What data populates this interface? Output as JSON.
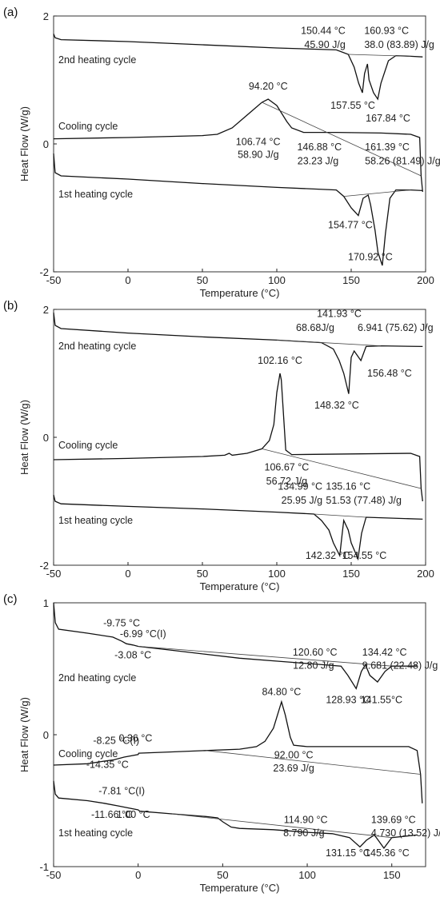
{
  "chart_data": [
    {
      "type": "line",
      "panel_label": "(a)",
      "xlabel": "Temperature (°C)",
      "ylabel": "Heat Flow (W/g)",
      "xlim": [
        -50,
        200
      ],
      "ylim": [
        -2,
        2
      ],
      "xticks": [
        "-50",
        "0",
        "50",
        "100",
        "150",
        "200"
      ],
      "yticks": [
        "2",
        "0",
        "-2"
      ],
      "series": [
        {
          "name": "2nd heating cycle",
          "x": [
            -50,
            -49,
            -45,
            0,
            50,
            100,
            140,
            148,
            152,
            155,
            157.55,
            159,
            160.93,
            162,
            165,
            167.84,
            170,
            175,
            180,
            190,
            198
          ],
          "y": [
            1.72,
            1.66,
            1.63,
            1.6,
            1.55,
            1.5,
            1.47,
            1.4,
            1.2,
            0.95,
            0.8,
            1.1,
            1.25,
            1.0,
            0.8,
            0.7,
            0.95,
            1.3,
            1.38,
            1.37,
            1.36
          ]
        },
        {
          "name": "Cooling cycle",
          "x": [
            -50,
            0,
            50,
            60,
            70,
            80,
            90,
            94.2,
            100,
            106.74,
            110,
            118,
            140,
            170,
            190,
            196,
            197,
            198
          ],
          "y": [
            0.08,
            0.1,
            0.13,
            0.15,
            0.25,
            0.45,
            0.65,
            0.7,
            0.6,
            0.35,
            0.25,
            0.18,
            0.18,
            0.17,
            0.15,
            0.1,
            -0.5,
            -0.75
          ]
        },
        {
          "name": "1st heating cycle",
          "x": [
            -50,
            -49,
            -45,
            0,
            50,
            100,
            140,
            145,
            150,
            154.77,
            158,
            161.39,
            163,
            166,
            168,
            170.92,
            173,
            176,
            180,
            190,
            198
          ],
          "y": [
            -0.15,
            -0.45,
            -0.5,
            -0.55,
            -0.62,
            -0.68,
            -0.72,
            -0.82,
            -1.0,
            -1.12,
            -0.85,
            -0.8,
            -0.95,
            -1.35,
            -1.7,
            -1.9,
            -1.4,
            -0.85,
            -0.72,
            -0.72,
            -0.73
          ]
        }
      ],
      "annotations": [
        {
          "text": "150.44 °C",
          "x": 150.44,
          "y": 1.72
        },
        {
          "text": "160.93 °C",
          "x": 160.93,
          "y": 1.72
        },
        {
          "text": "45.90 J/g",
          "x": 150.44,
          "y": 1.5
        },
        {
          "text": "38.0 (83.89) J/g",
          "x": 160.93,
          "y": 1.5
        },
        {
          "text": "157.55 °C",
          "x": 157.55,
          "y": 0.55
        },
        {
          "text": "167.84 °C",
          "x": 167.84,
          "y": 0.35
        },
        {
          "text": "94.20 °C",
          "x": 94.2,
          "y": 0.85
        },
        {
          "text": "106.74 °C",
          "x": 106.74,
          "y": -0.02
        },
        {
          "text": "58.90 J/g",
          "x": 106.74,
          "y": -0.22
        },
        {
          "text": "146.88 °C",
          "x": 146.88,
          "y": -0.1
        },
        {
          "text": "161.39 °C",
          "x": 161.39,
          "y": -0.1
        },
        {
          "text": "23.23 J/g",
          "x": 146.88,
          "y": -0.32
        },
        {
          "text": "58.26 (81.49) J/g",
          "x": 161.39,
          "y": -0.32
        },
        {
          "text": "154.77 °C",
          "x": 154.77,
          "y": -1.32
        },
        {
          "text": "170.92 °C",
          "x": 170.92,
          "y": -1.82
        }
      ]
    },
    {
      "type": "line",
      "panel_label": "(b)",
      "xlabel": "Temperature (°C)",
      "ylabel": "Heat Flow (W/g)",
      "xlim": [
        -50,
        200
      ],
      "ylim": [
        -2,
        2
      ],
      "xticks": [
        "-50",
        "0",
        "50",
        "100",
        "150",
        "200"
      ],
      "yticks": [
        "2",
        "0",
        "-2"
      ],
      "series": [
        {
          "name": "2nd heating cycle",
          "x": [
            -50,
            -49,
            -45,
            0,
            50,
            100,
            130,
            138,
            141.93,
            145,
            148.32,
            150,
            152,
            156.48,
            160,
            170,
            198
          ],
          "y": [
            1.95,
            1.75,
            1.7,
            1.63,
            1.57,
            1.52,
            1.48,
            1.38,
            1.2,
            1.0,
            0.68,
            1.25,
            1.35,
            1.2,
            1.42,
            1.43,
            1.42
          ]
        },
        {
          "name": "Cooling cycle",
          "x": [
            -50,
            0,
            50,
            65,
            68,
            70,
            80,
            90,
            95,
            98,
            100,
            102.16,
            103,
            106,
            110,
            150,
            190,
            196,
            197,
            198
          ],
          "y": [
            -0.35,
            -0.33,
            -0.3,
            -0.28,
            -0.25,
            -0.28,
            -0.25,
            -0.18,
            -0.05,
            0.2,
            0.7,
            1.0,
            0.9,
            -0.2,
            -0.27,
            -0.26,
            -0.25,
            -0.3,
            -0.8,
            -1.0
          ]
        },
        {
          "name": "1st heating cycle",
          "x": [
            -50,
            -49,
            -45,
            0,
            50,
            100,
            125,
            130,
            134.99,
            138,
            142.32,
            144,
            145,
            148,
            150,
            154.55,
            157,
            160,
            198
          ],
          "y": [
            -0.9,
            -1.0,
            -1.04,
            -1.08,
            -1.12,
            -1.17,
            -1.2,
            -1.3,
            -1.45,
            -1.65,
            -1.85,
            -1.5,
            -1.3,
            -1.45,
            -1.65,
            -1.9,
            -1.5,
            -1.25,
            -1.28
          ]
        }
      ],
      "annotations": [
        {
          "text": "141.93 °C",
          "x": 141.93,
          "y": 1.88
        },
        {
          "text": "68.68J/g",
          "x": 141.93,
          "y": 1.66
        },
        {
          "text": "6.941 (75.62) J/g",
          "x": 156.48,
          "y": 1.66
        },
        {
          "text": "156.48 °C",
          "x": 156.48,
          "y": 0.95
        },
        {
          "text": "148.32 °C",
          "x": 148.32,
          "y": 0.45
        },
        {
          "text": "102.16 °C",
          "x": 102.16,
          "y": 1.15
        },
        {
          "text": "106.67 °C",
          "x": 106.67,
          "y": -0.52
        },
        {
          "text": "56.72 J/g",
          "x": 106.67,
          "y": -0.74
        },
        {
          "text": "134.99 °C",
          "x": 134.99,
          "y": -0.82
        },
        {
          "text": "135.16 °C",
          "x": 135.16,
          "y": -0.82
        },
        {
          "text": "25.95 J/g",
          "x": 134.99,
          "y": -1.04
        },
        {
          "text": "51.53 (77.48) J/g",
          "x": 135.16,
          "y": -1.04
        },
        {
          "text": "142.32 °C",
          "x": 142.32,
          "y": -1.9
        },
        {
          "text": "154.55 °C",
          "x": 154.55,
          "y": -1.9
        }
      ]
    },
    {
      "type": "line",
      "panel_label": "(c)",
      "xlabel": "Temperature (°C)",
      "ylabel": "Heat Flow (W/g)",
      "xlim": [
        -50,
        170
      ],
      "ylim": [
        -1,
        1
      ],
      "xticks": [
        "-50",
        "0",
        "50",
        "100",
        "150"
      ],
      "yticks": [
        "1",
        "0",
        "-1"
      ],
      "series": [
        {
          "name": "2nd heating cycle",
          "x": [
            -50,
            -49,
            -47,
            -30,
            -15,
            -9.75,
            -6.99,
            -3.08,
            0,
            20,
            40,
            60,
            80,
            100,
            120,
            124,
            128.93,
            132,
            134.42,
            137,
            141.55,
            146,
            150,
            165
          ],
          "y": [
            1.0,
            0.85,
            0.8,
            0.77,
            0.74,
            0.71,
            0.69,
            0.68,
            0.67,
            0.64,
            0.61,
            0.58,
            0.56,
            0.54,
            0.52,
            0.45,
            0.35,
            0.48,
            0.53,
            0.45,
            0.4,
            0.48,
            0.52,
            0.52
          ]
        },
        {
          "name": "Cooling cycle",
          "x": [
            -50,
            -30,
            -20,
            -14.35,
            -8.25,
            0,
            0.36,
            20,
            40,
            60,
            70,
            75,
            80,
            84.8,
            87,
            90,
            92,
            100,
            130,
            160,
            165,
            167,
            168
          ],
          "y": [
            -0.23,
            -0.22,
            -0.2,
            -0.19,
            -0.17,
            -0.15,
            -0.14,
            -0.13,
            -0.12,
            -0.11,
            -0.09,
            -0.05,
            0.05,
            0.25,
            0.15,
            -0.02,
            -0.08,
            -0.09,
            -0.09,
            -0.09,
            -0.12,
            -0.3,
            -0.52
          ]
        },
        {
          "name": "1st heating cycle",
          "x": [
            -50,
            -49,
            -47,
            -30,
            -20,
            -11.66,
            -7.81,
            0,
            1.0,
            20,
            40,
            47,
            50,
            55,
            60,
            80,
            100,
            114.9,
            125,
            131.15,
            135,
            139.69,
            142,
            145.36,
            150,
            165
          ],
          "y": [
            -0.35,
            -0.45,
            -0.48,
            -0.5,
            -0.52,
            -0.54,
            -0.55,
            -0.57,
            -0.58,
            -0.6,
            -0.62,
            -0.63,
            -0.66,
            -0.7,
            -0.71,
            -0.72,
            -0.74,
            -0.75,
            -0.78,
            -0.85,
            -0.8,
            -0.76,
            -0.8,
            -0.86,
            -0.78,
            -0.76
          ]
        }
      ],
      "annotations": [
        {
          "text": "-9.75 °C",
          "x": -9.75,
          "y": 0.82
        },
        {
          "text": "-6.99 °C(I)",
          "x": -6.99,
          "y": 0.74
        },
        {
          "text": "-3.08 °C",
          "x": -3.08,
          "y": 0.58
        },
        {
          "text": "120.60 °C",
          "x": 120.6,
          "y": 0.6
        },
        {
          "text": "134.42 °C",
          "x": 134.42,
          "y": 0.6
        },
        {
          "text": "12.80 J/g",
          "x": 120.6,
          "y": 0.5
        },
        {
          "text": "9.681 (22.48) J/g",
          "x": 134.42,
          "y": 0.5
        },
        {
          "text": "128.93 °C",
          "x": 128.93,
          "y": 0.24
        },
        {
          "text": "141.55°C",
          "x": 141.55,
          "y": 0.24
        },
        {
          "text": "84.80 °C",
          "x": 84.8,
          "y": 0.3
        },
        {
          "text": "-8.25 °C(I)",
          "x": -8.25,
          "y": -0.07
        },
        {
          "text": "0.36 °C",
          "x": 0.36,
          "y": -0.05
        },
        {
          "text": "-14.35 °C",
          "x": -14.35,
          "y": -0.25
        },
        {
          "text": "92.00 °C",
          "x": 92.0,
          "y": -0.18
        },
        {
          "text": "23.69 J/g",
          "x": 92.0,
          "y": -0.28
        },
        {
          "text": "-7.81 °C(I)",
          "x": -7.81,
          "y": -0.45
        },
        {
          "text": "-11.66 °C",
          "x": -11.66,
          "y": -0.63
        },
        {
          "text": "1.00 °C",
          "x": 1.0,
          "y": -0.63
        },
        {
          "text": "114.90 °C",
          "x": 114.9,
          "y": -0.67
        },
        {
          "text": "139.69 °C",
          "x": 139.69,
          "y": -0.67
        },
        {
          "text": "8.790 J/g",
          "x": 114.9,
          "y": -0.77
        },
        {
          "text": "4.730 (13.52) J/g",
          "x": 139.69,
          "y": -0.77
        },
        {
          "text": "131.15 °C",
          "x": 131.15,
          "y": -0.92
        },
        {
          "text": "145.36 °C",
          "x": 145.36,
          "y": -0.92
        }
      ]
    }
  ]
}
